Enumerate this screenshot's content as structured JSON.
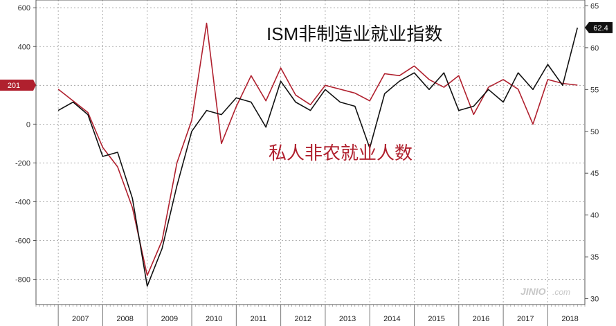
{
  "chart_data": {
    "type": "line",
    "title": "",
    "xlabel": "",
    "x_range": [
      "2006-07",
      "2018-11"
    ],
    "years": [
      "2007",
      "2008",
      "2009",
      "2010",
      "2011",
      "2012",
      "2013",
      "2014",
      "2015",
      "2016",
      "2017",
      "2018"
    ],
    "y_left": {
      "ylim": [
        -930,
        640
      ],
      "ticks": [
        600,
        400,
        200,
        0,
        -200,
        -400,
        -600,
        -800
      ]
    },
    "y_right": {
      "ylim": [
        29.3,
        65.7
      ],
      "ticks": [
        65,
        60,
        55,
        50,
        45,
        40,
        35,
        30
      ]
    },
    "grid": true,
    "annotations": {
      "left_value": "201",
      "right_value": "62.4"
    },
    "colors": {
      "ism": "#111111",
      "payrolls": "#b0202e",
      "badge_left": "#b0202e",
      "badge_right": "#111111"
    },
    "series": [
      {
        "name": "ISM非制造业就业指数",
        "axis": "right",
        "x": [
          "2007-01",
          "2007-05",
          "2007-09",
          "2008-01",
          "2008-05",
          "2008-09",
          "2009-01",
          "2009-05",
          "2009-09",
          "2010-01",
          "2010-05",
          "2010-09",
          "2011-01",
          "2011-05",
          "2011-09",
          "2012-01",
          "2012-05",
          "2012-09",
          "2013-01",
          "2013-05",
          "2013-09",
          "2014-01",
          "2014-05",
          "2014-09",
          "2015-01",
          "2015-05",
          "2015-09",
          "2016-01",
          "2016-05",
          "2016-09",
          "2017-01",
          "2017-05",
          "2017-09",
          "2018-01",
          "2018-05",
          "2018-09"
        ],
        "y": [
          52.5,
          53.5,
          52.0,
          47.0,
          47.5,
          42.0,
          31.5,
          36.0,
          43.5,
          50.0,
          52.5,
          52.0,
          54.0,
          53.5,
          50.5,
          56.0,
          53.5,
          52.5,
          55.0,
          53.5,
          53.0,
          48.0,
          54.5,
          56.0,
          57.0,
          55.0,
          57.0,
          52.5,
          53.0,
          55.0,
          53.5,
          57.0,
          55.0,
          58.0,
          55.5,
          62.4
        ]
      },
      {
        "name": "私人非农就业人数",
        "axis": "left",
        "x": [
          "2007-01",
          "2007-05",
          "2007-09",
          "2008-01",
          "2008-05",
          "2008-09",
          "2009-01",
          "2009-05",
          "2009-09",
          "2010-01",
          "2010-05",
          "2010-09",
          "2011-01",
          "2011-05",
          "2011-09",
          "2012-01",
          "2012-05",
          "2012-09",
          "2013-01",
          "2013-05",
          "2013-09",
          "2014-01",
          "2014-05",
          "2014-09",
          "2015-01",
          "2015-05",
          "2015-09",
          "2016-01",
          "2016-05",
          "2016-09",
          "2017-01",
          "2017-05",
          "2017-09",
          "2018-01",
          "2018-05",
          "2018-09"
        ],
        "y": [
          180,
          120,
          60,
          -120,
          -220,
          -430,
          -780,
          -600,
          -200,
          20,
          520,
          -100,
          90,
          250,
          120,
          290,
          150,
          100,
          200,
          180,
          160,
          120,
          260,
          250,
          300,
          230,
          190,
          250,
          50,
          190,
          230,
          180,
          0,
          230,
          210,
          201
        ]
      }
    ],
    "labels": [
      {
        "text": "ISM非制造业就业指数",
        "color": "#111111"
      },
      {
        "text": "私人非农就业人数",
        "color": "#b0202e"
      }
    ],
    "watermark": {
      "brand": "JINIO",
      "suffix": ".com"
    }
  }
}
